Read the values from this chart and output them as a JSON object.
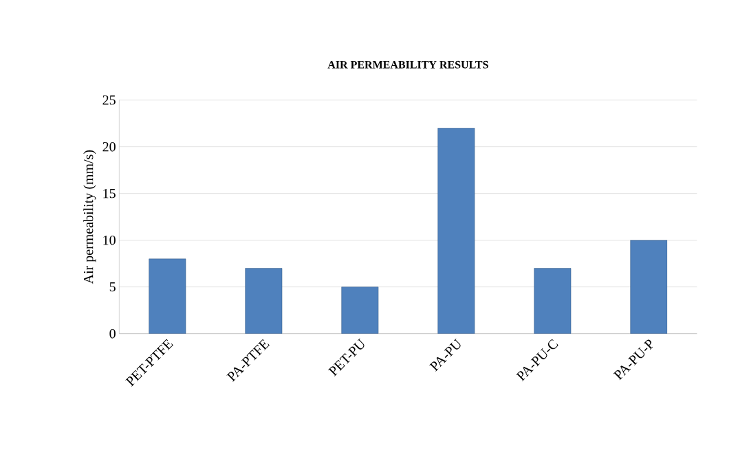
{
  "chart_data": {
    "type": "bar",
    "title": "AIR PERMEABILITY RESULTS",
    "ylabel": "Air permeability (mm/s)",
    "categories": [
      "PET-PTFE",
      "PA-PTFE",
      "PET-PU",
      "PA-PU",
      "PA-PU-C",
      "PA-PU-P"
    ],
    "values": [
      8,
      7,
      5,
      22,
      7,
      10
    ],
    "color": "#4f81bd",
    "ylim": [
      0,
      25
    ],
    "yticks": [
      0,
      5,
      10,
      15,
      20,
      25
    ],
    "grid": "y"
  }
}
